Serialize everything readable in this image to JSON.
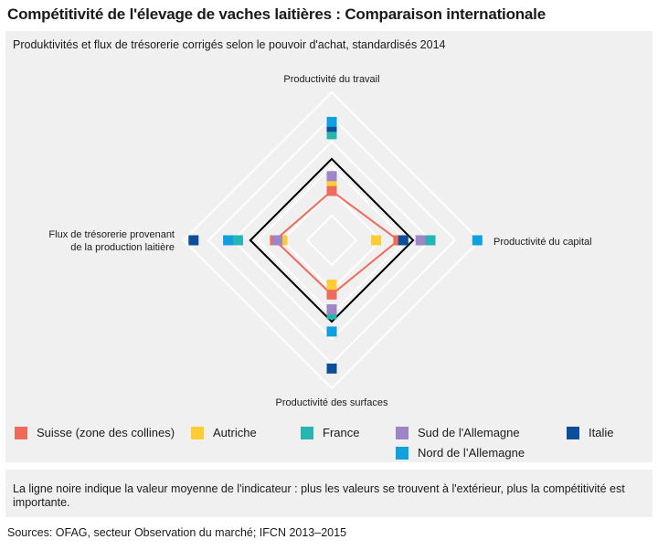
{
  "header": {
    "title": "Compétitivité de l'élevage de vaches laitières : Comparaison internationale"
  },
  "chart_data": {
    "type": "radar",
    "subtitle": "Produktivités et flux de trésorerie corrigés selon le pouvoir d'achat, standardisés 2014",
    "axes": [
      "Productivité du travail",
      "Productivité du capital",
      "Productivité des surfaces",
      "Flux de trésorerie provenant de la production laitière"
    ],
    "axis_label_lines": [
      [
        "Productivité du travail"
      ],
      [
        "Productivité du capital"
      ],
      [
        "Productivité des surfaces"
      ],
      [
        "Flux de trésorerie provenant",
        "de la production laitière"
      ]
    ],
    "grid_rings": 6,
    "max_value": 6,
    "average_line": {
      "values": [
        3.3,
        3.3,
        3.3,
        3.3
      ],
      "color": "#000000"
    },
    "series": [
      {
        "name": "Suisse (zone des collines)",
        "color": "#ee6b5b",
        "values": [
          2.0,
          2.7,
          2.2,
          2.3
        ],
        "line": true
      },
      {
        "name": "Autriche",
        "color": "#ffcc33",
        "values": [
          2.4,
          1.8,
          1.8,
          2.0
        ]
      },
      {
        "name": "France",
        "color": "#26b5b0",
        "values": [
          4.3,
          4.0,
          3.0,
          3.8
        ]
      },
      {
        "name": "Sud de l'Allemagne",
        "color": "#9d85c6",
        "values": [
          2.6,
          3.6,
          2.8,
          2.2
        ]
      },
      {
        "name": "Italie",
        "color": "#0c4e9a",
        "values": [
          4.6,
          2.9,
          5.2,
          5.6
        ]
      },
      {
        "name": "Nord de l’Allemagne",
        "color": "#0fa0e0",
        "values": [
          4.8,
          5.9,
          3.7,
          4.2
        ]
      }
    ],
    "legend_position": "bottom"
  },
  "note": "La ligne noire indique la valeur moyenne de l'indicateur : plus les valeurs se trouvent à l'extérieur, plus la compétitivité est importante.",
  "source": "Sources: OFAG, secteur Observation du marché; IFCN 2013–2015"
}
